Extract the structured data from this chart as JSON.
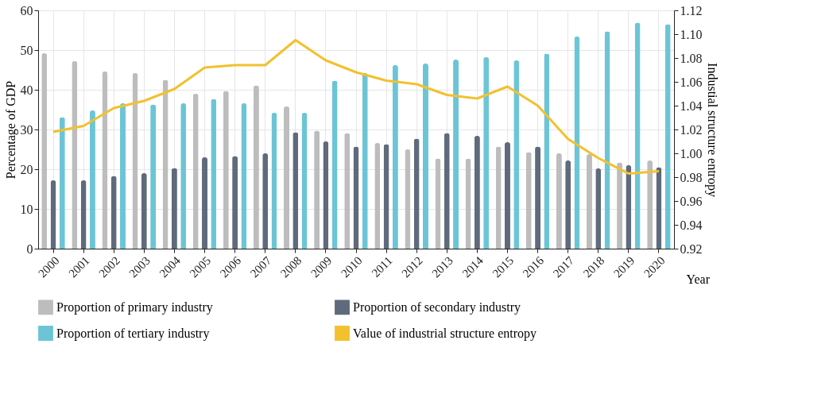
{
  "chart_data": {
    "type": "bar",
    "xlabel": "Year",
    "ylabel": "Percentage of GDP",
    "y2label": "Industial structure entropy",
    "categories": [
      "2000",
      "2001",
      "2002",
      "2003",
      "2004",
      "2005",
      "2006",
      "2007",
      "2008",
      "2009",
      "2010",
      "2011",
      "2012",
      "2013",
      "2014",
      "2015",
      "2016",
      "2017",
      "2018",
      "2019",
      "2020"
    ],
    "series": [
      {
        "name": "Proportion of primary industry",
        "color": "#bdbdbd",
        "values": [
          49.2,
          47.2,
          44.6,
          44.2,
          42.5,
          39.0,
          39.7,
          41.1,
          35.8,
          29.7,
          29.1,
          26.6,
          25.0,
          22.7,
          22.7,
          25.7,
          24.3,
          24.0,
          23.8,
          21.7,
          22.2
        ]
      },
      {
        "name": "Proportion of secondary industry",
        "color": "#5f6b7c",
        "values": [
          17.2,
          17.2,
          18.3,
          19.0,
          20.3,
          23.0,
          23.3,
          24.0,
          29.3,
          27.0,
          25.7,
          26.3,
          27.7,
          29.1,
          28.4,
          26.8,
          25.7,
          22.2,
          20.2,
          21.0,
          20.5
        ]
      },
      {
        "name": "Proportion of tertiary industry",
        "color": "#6cc5d6",
        "values": [
          33.1,
          34.8,
          36.6,
          36.3,
          36.6,
          37.7,
          36.6,
          34.2,
          34.2,
          42.3,
          44.2,
          46.2,
          46.6,
          47.6,
          48.2,
          47.4,
          49.1,
          53.4,
          54.7,
          56.9,
          56.5
        ]
      },
      {
        "name": "Value of industrial structure entropy",
        "type": "line",
        "axis": "y2",
        "color": "#f2c12e",
        "values": [
          1.018,
          1.023,
          1.038,
          1.044,
          1.054,
          1.072,
          1.074,
          1.074,
          1.095,
          1.078,
          1.068,
          1.061,
          1.058,
          1.049,
          1.046,
          1.056,
          1.04,
          1.012,
          0.996,
          0.983,
          0.985
        ]
      }
    ],
    "ylim": [
      0,
      60
    ],
    "yticks": [
      0,
      10,
      20,
      30,
      40,
      50,
      60
    ],
    "y2lim": [
      0.92,
      1.12
    ],
    "y2ticks": [
      {
        "value": 0.92,
        "label": "0.92"
      },
      {
        "value": 0.94,
        "label": "0.94"
      },
      {
        "value": 0.96,
        "label": "0.96"
      },
      {
        "value": 0.98,
        "label": "0.98"
      },
      {
        "value": 1.0,
        "label": "1.00"
      },
      {
        "value": 1.02,
        "label": "1.02"
      },
      {
        "value": 1.04,
        "label": "1.04"
      },
      {
        "value": 1.06,
        "label": "1.06"
      },
      {
        "value": 1.08,
        "label": "1.08"
      },
      {
        "value": 1.1,
        "label": "1.10"
      },
      {
        "value": 1.12,
        "label": "1.12"
      }
    ],
    "grid": true,
    "legend": "bottom",
    "marker": "none",
    "line_style": "solid"
  }
}
